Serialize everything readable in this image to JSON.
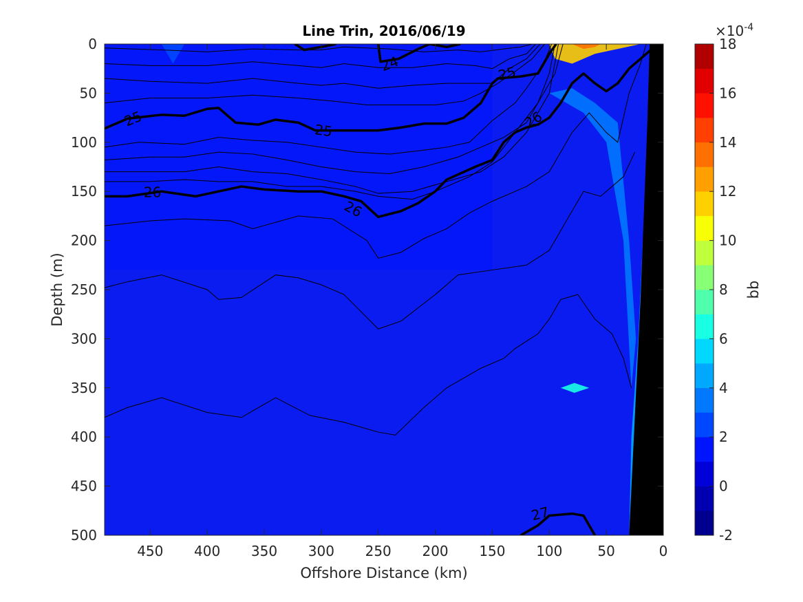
{
  "chart_data": {
    "type": "contour",
    "title": "Line Trin, 2016/06/19",
    "xlabel": "Offshore Distance (km)",
    "ylabel": "Depth (m)",
    "xlim": [
      490,
      0
    ],
    "x_reversed": true,
    "ylim": [
      500,
      0
    ],
    "y_reversed": true,
    "xticks": [
      450,
      400,
      350,
      300,
      250,
      200,
      150,
      100,
      50,
      0
    ],
    "yticks": [
      0,
      50,
      100,
      150,
      200,
      250,
      300,
      350,
      400,
      450,
      500
    ],
    "colorbar": {
      "label": "bb",
      "exponent_label": "×10",
      "exponent_power": "-4",
      "ticks": [
        18,
        16,
        14,
        12,
        10,
        8,
        6,
        4,
        2,
        0,
        -2
      ],
      "range": [
        -2,
        18
      ],
      "levels": [
        {
          "value": -2,
          "color": "#00008f"
        },
        {
          "value": -1,
          "color": "#0000b0"
        },
        {
          "value": 0,
          "color": "#0000d8"
        },
        {
          "value": 1,
          "color": "#0014ff"
        },
        {
          "value": 2,
          "color": "#0048ff"
        },
        {
          "value": 3,
          "color": "#0078ff"
        },
        {
          "value": 4,
          "color": "#00a8ff"
        },
        {
          "value": 5,
          "color": "#00d8ff"
        },
        {
          "value": 6,
          "color": "#18ffe4"
        },
        {
          "value": 7,
          "color": "#50ffac"
        },
        {
          "value": 8,
          "color": "#88ff74"
        },
        {
          "value": 9,
          "color": "#c0ff3c"
        },
        {
          "value": 10,
          "color": "#f8ff04"
        },
        {
          "value": 11,
          "color": "#ffd000"
        },
        {
          "value": 12,
          "color": "#ffa000"
        },
        {
          "value": 13,
          "color": "#ff7000"
        },
        {
          "value": 14,
          "color": "#ff4000"
        },
        {
          "value": 15,
          "color": "#ff1000"
        },
        {
          "value": 16,
          "color": "#e00000"
        },
        {
          "value": 17,
          "color": "#b00000"
        }
      ]
    },
    "background_color": "#0a1cf0",
    "bottom_color": "#000000",
    "bottom_profile": [
      [
        12,
        0
      ],
      [
        14,
        80
      ],
      [
        20,
        260
      ],
      [
        30,
        500
      ]
    ],
    "contour_labels": [
      {
        "text": "24",
        "x": 240,
        "y": 20,
        "rot": -20
      },
      {
        "text": "25",
        "x": 465,
        "y": 76,
        "rot": -22
      },
      {
        "text": "25",
        "x": 298,
        "y": 88,
        "rot": 8
      },
      {
        "text": "25",
        "x": 137,
        "y": 30,
        "rot": -14
      },
      {
        "text": "26",
        "x": 448,
        "y": 151,
        "rot": 0
      },
      {
        "text": "26",
        "x": 272,
        "y": 168,
        "rot": 28
      },
      {
        "text": "26",
        "x": 114,
        "y": 77,
        "rot": -32
      },
      {
        "text": "27",
        "x": 108,
        "y": 478,
        "rot": -14
      }
    ],
    "thick_contours": [
      {
        "level": "24",
        "x": [
          323,
          315,
          300,
          287
        ],
        "y": [
          0,
          6,
          3,
          0
        ]
      },
      {
        "level": "24",
        "x": [
          250,
          248,
          232,
          215,
          205,
          190,
          178
        ],
        "y": [
          0,
          18,
          15,
          5,
          0,
          3,
          0
        ]
      },
      {
        "level": "25",
        "x": [
          490,
          470,
          440,
          420,
          400,
          390,
          375,
          355,
          340,
          320,
          305,
          280,
          250,
          230,
          210,
          190,
          175,
          160,
          150,
          145,
          125,
          110,
          100,
          94
        ],
        "y": [
          86,
          76,
          72,
          73,
          66,
          65,
          80,
          82,
          77,
          80,
          88,
          88,
          88,
          85,
          81,
          81,
          75,
          60,
          40,
          35,
          33,
          30,
          10,
          0
        ]
      },
      {
        "level": "26",
        "x": [
          490,
          470,
          440,
          410,
          390,
          370,
          350,
          320,
          300,
          280,
          265,
          250,
          230,
          215,
          200,
          190,
          165,
          150,
          140,
          130,
          120,
          110,
          100,
          90,
          80,
          70,
          60,
          50,
          40,
          30,
          20,
          10
        ],
        "y": [
          155,
          155,
          150,
          155,
          150,
          145,
          148,
          150,
          150,
          155,
          160,
          176,
          170,
          162,
          150,
          138,
          125,
          118,
          100,
          90,
          85,
          82,
          75,
          60,
          40,
          30,
          40,
          48,
          40,
          25,
          15,
          5
        ]
      },
      {
        "level": "27",
        "x": [
          125,
          110,
          100,
          80,
          70,
          60
        ],
        "y": [
          500,
          490,
          480,
          478,
          480,
          500
        ]
      }
    ],
    "thin_contours": [
      {
        "x": [
          490,
          440,
          400,
          360,
          320,
          300,
          280,
          260,
          240,
          210,
          180,
          160,
          140,
          125,
          115
        ],
        "y": [
          4,
          6,
          8,
          5,
          6,
          6,
          3,
          4,
          5,
          8,
          6,
          8,
          5,
          3,
          0
        ]
      },
      {
        "x": [
          490,
          450,
          400,
          360,
          320,
          300,
          280,
          250,
          220,
          190,
          165,
          150,
          135,
          120,
          112
        ],
        "y": [
          20,
          22,
          22,
          18,
          22,
          24,
          20,
          24,
          24,
          20,
          22,
          25,
          15,
          10,
          0
        ]
      },
      {
        "x": [
          490,
          450,
          400,
          360,
          320,
          300,
          280,
          250,
          220,
          190,
          165,
          150,
          135,
          120,
          108
        ],
        "y": [
          35,
          38,
          40,
          35,
          40,
          42,
          40,
          45,
          42,
          40,
          40,
          40,
          25,
          15,
          0
        ]
      },
      {
        "x": [
          490,
          450,
          400,
          360,
          320,
          290,
          260,
          230,
          200,
          175,
          160,
          145,
          130,
          115,
          104
        ],
        "y": [
          60,
          55,
          55,
          52,
          55,
          58,
          62,
          62,
          62,
          58,
          50,
          40,
          28,
          15,
          0
        ]
      },
      {
        "x": [
          490,
          460,
          420,
          390,
          360,
          330,
          300,
          270,
          240,
          210,
          190,
          170,
          150,
          130,
          120,
          105,
          98
        ],
        "y": [
          105,
          100,
          102,
          95,
          98,
          100,
          105,
          110,
          112,
          108,
          105,
          100,
          78,
          60,
          45,
          20,
          0
        ]
      },
      {
        "x": [
          490,
          450,
          420,
          390,
          360,
          330,
          300,
          270,
          240,
          210,
          180,
          160,
          140,
          120,
          110,
          100,
          95
        ],
        "y": [
          118,
          115,
          115,
          110,
          112,
          118,
          125,
          130,
          132,
          125,
          115,
          105,
          95,
          80,
          60,
          30,
          0
        ]
      },
      {
        "x": [
          490,
          450,
          420,
          390,
          360,
          330,
          300,
          270,
          250,
          220,
          190,
          160,
          140,
          120,
          100,
          92
        ],
        "y": [
          130,
          130,
          130,
          125,
          130,
          132,
          138,
          145,
          152,
          150,
          140,
          130,
          115,
          90,
          50,
          0
        ]
      },
      {
        "x": [
          490,
          450,
          420,
          390,
          360,
          330,
          300,
          270,
          250,
          220,
          200,
          170,
          150,
          130,
          110,
          95,
          88
        ],
        "y": [
          140,
          140,
          138,
          140,
          140,
          145,
          145,
          150,
          155,
          158,
          150,
          135,
          120,
          90,
          60,
          30,
          0
        ]
      },
      {
        "x": [
          490,
          450,
          420,
          380,
          360,
          320,
          290,
          260,
          250,
          230,
          210,
          190,
          170,
          150,
          120,
          100,
          90,
          80,
          65,
          50,
          40,
          30,
          20,
          15
        ],
        "y": [
          185,
          180,
          178,
          180,
          188,
          175,
          178,
          200,
          218,
          212,
          198,
          188,
          172,
          160,
          145,
          130,
          110,
          90,
          70,
          90,
          100,
          50,
          20,
          0
        ]
      },
      {
        "x": [
          490,
          470,
          440,
          400,
          390,
          370,
          340,
          320,
          300,
          280,
          250,
          230,
          200,
          180,
          150,
          120,
          100,
          85,
          70,
          55,
          45,
          35,
          25
        ],
        "y": [
          248,
          242,
          235,
          250,
          260,
          258,
          235,
          238,
          245,
          255,
          290,
          282,
          255,
          235,
          230,
          225,
          210,
          180,
          150,
          155,
          145,
          135,
          110
        ]
      },
      {
        "x": [
          490,
          470,
          440,
          400,
          370,
          340,
          310,
          280,
          250,
          235,
          210,
          190,
          160,
          140,
          130,
          110,
          100,
          90,
          75,
          60,
          45,
          35,
          28
        ],
        "y": [
          380,
          370,
          360,
          375,
          380,
          360,
          378,
          385,
          395,
          398,
          370,
          350,
          330,
          320,
          310,
          295,
          280,
          260,
          255,
          280,
          295,
          320,
          350
        ]
      }
    ],
    "color_patches": [
      {
        "level": 1,
        "points": [
          [
            490,
            0
          ],
          [
            150,
            0
          ],
          [
            150,
            230
          ],
          [
            490,
            230
          ]
        ],
        "note": "slightly darker band"
      },
      {
        "level": 2,
        "points": [
          [
            440,
            0
          ],
          [
            430,
            20
          ],
          [
            420,
            0
          ]
        ]
      },
      {
        "level": 3,
        "points": [
          [
            100,
            50
          ],
          [
            80,
            45
          ],
          [
            60,
            60
          ],
          [
            40,
            80
          ],
          [
            30,
            200
          ],
          [
            24,
            300
          ],
          [
            28,
            350
          ],
          [
            35,
            200
          ],
          [
            50,
            100
          ],
          [
            70,
            70
          ]
        ]
      },
      {
        "level": 4,
        "points": [
          [
            18,
            200
          ],
          [
            22,
            300
          ],
          [
            28,
            400
          ],
          [
            30,
            500
          ],
          [
            20,
            500
          ],
          [
            14,
            350
          ],
          [
            12,
            250
          ]
        ]
      },
      {
        "level": 11,
        "points": [
          [
            150,
            0
          ],
          [
            100,
            0
          ],
          [
            95,
            15
          ],
          [
            80,
            20
          ],
          [
            60,
            10
          ],
          [
            40,
            5
          ],
          [
            20,
            0
          ]
        ]
      },
      {
        "level": 13,
        "points": [
          [
            80,
            0
          ],
          [
            70,
            5
          ],
          [
            60,
            3
          ],
          [
            55,
            0
          ]
        ]
      },
      {
        "level": 6,
        "points": [
          [
            90,
            350
          ],
          [
            78,
            345
          ],
          [
            65,
            350
          ],
          [
            78,
            355
          ]
        ]
      }
    ]
  }
}
